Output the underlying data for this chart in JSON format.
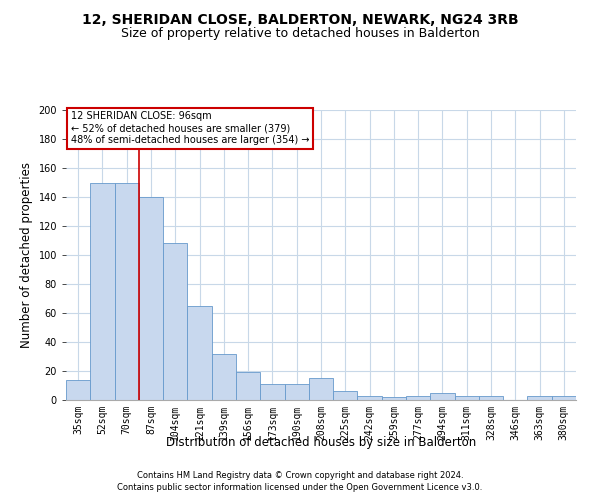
{
  "title": "12, SHERIDAN CLOSE, BALDERTON, NEWARK, NG24 3RB",
  "subtitle": "Size of property relative to detached houses in Balderton",
  "xlabel": "Distribution of detached houses by size in Balderton",
  "ylabel": "Number of detached properties",
  "categories": [
    "35sqm",
    "52sqm",
    "70sqm",
    "87sqm",
    "104sqm",
    "121sqm",
    "139sqm",
    "156sqm",
    "173sqm",
    "190sqm",
    "208sqm",
    "225sqm",
    "242sqm",
    "259sqm",
    "277sqm",
    "294sqm",
    "311sqm",
    "328sqm",
    "346sqm",
    "363sqm",
    "380sqm"
  ],
  "values": [
    14,
    150,
    150,
    140,
    108,
    65,
    32,
    19,
    11,
    11,
    15,
    6,
    3,
    2,
    3,
    5,
    3,
    3,
    0,
    3,
    3
  ],
  "bar_color": "#c8d8ee",
  "bar_edge_color": "#6699cc",
  "annotation_text": "12 SHERIDAN CLOSE: 96sqm\n← 52% of detached houses are smaller (379)\n48% of semi-detached houses are larger (354) →",
  "annotation_box_color": "#ffffff",
  "annotation_box_edge": "#cc0000",
  "vline_color": "#cc0000",
  "ylim": [
    0,
    200
  ],
  "yticks": [
    0,
    20,
    40,
    60,
    80,
    100,
    120,
    140,
    160,
    180,
    200
  ],
  "footer1": "Contains HM Land Registry data © Crown copyright and database right 2024.",
  "footer2": "Contains public sector information licensed under the Open Government Licence v3.0.",
  "bg_color": "#ffffff",
  "grid_color": "#c8d8e8",
  "title_fontsize": 10,
  "subtitle_fontsize": 9,
  "tick_fontsize": 7,
  "label_fontsize": 8.5,
  "footer_fontsize": 6,
  "vline_x": 2.5
}
